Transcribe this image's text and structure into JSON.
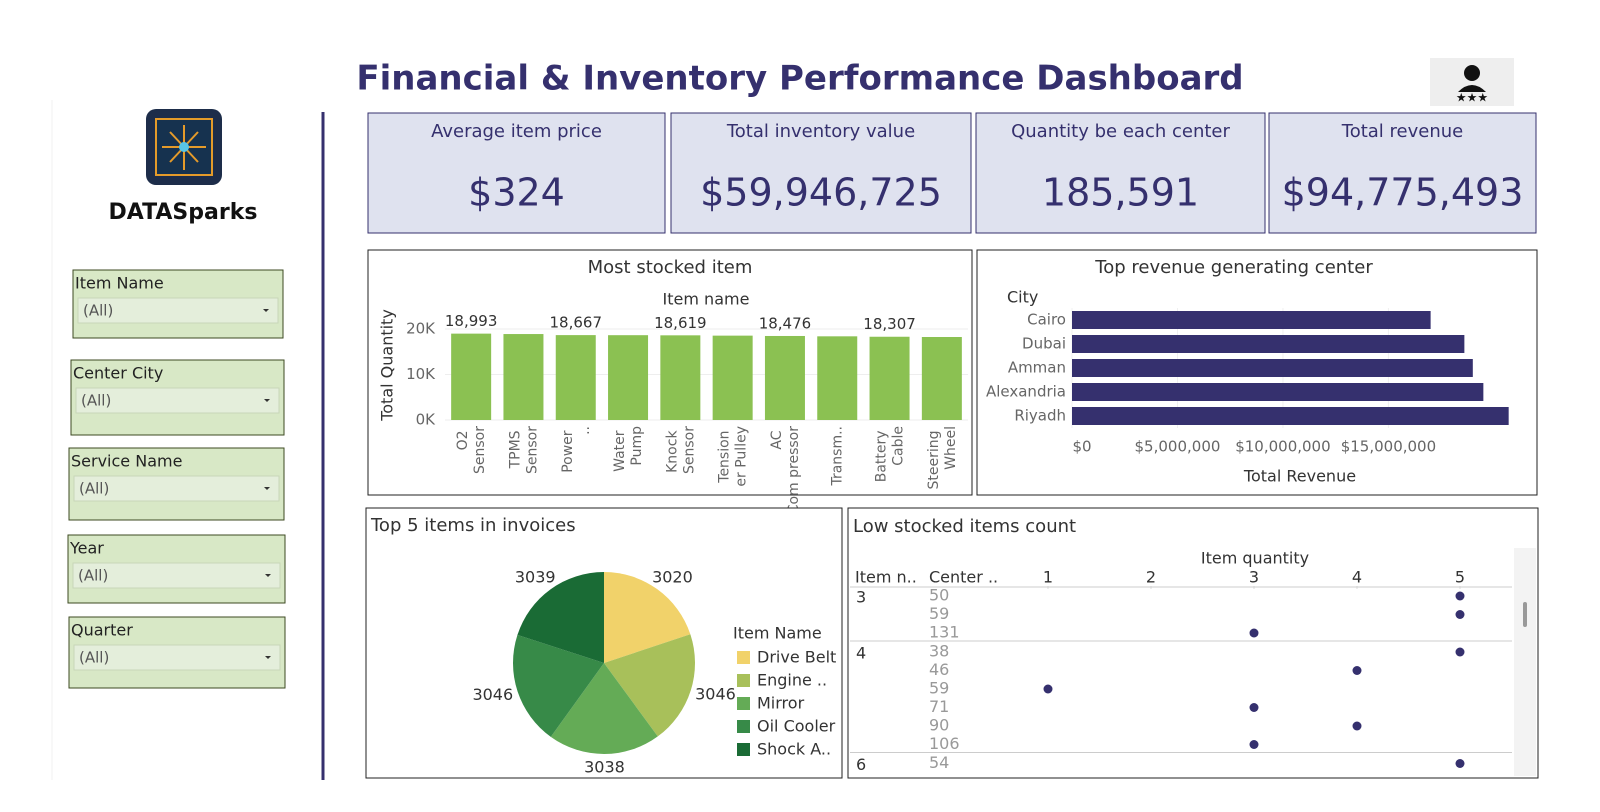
{
  "header": {
    "title": "Financial & Inventory Performance Dashboard",
    "logo": "DATASparks"
  },
  "filters": [
    {
      "label": "Item Name",
      "value": "(All)"
    },
    {
      "label": "Center City",
      "value": "(All)"
    },
    {
      "label": "Service Name",
      "value": "(All)"
    },
    {
      "label": "Year",
      "value": "(All)"
    },
    {
      "label": "Quarter",
      "value": "(All)"
    }
  ],
  "kpis": [
    {
      "label": "Average item price",
      "value": "$324"
    },
    {
      "label": "Total inventory value",
      "value": "$59,946,725"
    },
    {
      "label": "Quantity be each center",
      "value": "185,591"
    },
    {
      "label": "Total revenue",
      "value": "$94,775,493"
    }
  ],
  "chart_data": [
    {
      "type": "bar",
      "title": "Most stocked item",
      "x_label": "Item name",
      "y_label": "Total Quantity",
      "categories": [
        "O2 Sensor",
        "TPMS Sensor",
        "Power ..",
        "Water Pump",
        "Knock Sensor",
        "Tension er Pulley",
        "AC Com pressor",
        "Transm..",
        "Battery Cable",
        "Steering Wheel"
      ],
      "values": [
        18993,
        18900,
        18667,
        18650,
        18619,
        18550,
        18476,
        18400,
        18307,
        18250
      ],
      "value_labels": [
        "18,993",
        null,
        "18,667",
        null,
        "18,619",
        null,
        "18,476",
        null,
        "18,307",
        null
      ],
      "color": "#8bc152",
      "ylim": [
        0,
        21000
      ],
      "yticks": [
        {
          "value": 0,
          "label": "0K"
        },
        {
          "value": 10000,
          "label": "10K"
        },
        {
          "value": 20000,
          "label": "20K"
        }
      ],
      "grid": true
    },
    {
      "type": "hbar",
      "title": "Top revenue generating center",
      "y_label": "City",
      "x_label": "Total Revenue",
      "categories": [
        "Cairo",
        "Dubai",
        "Amman",
        "Alexandria",
        "Riyadh"
      ],
      "values": [
        17000000,
        18600000,
        19000000,
        19500000,
        20700000
      ],
      "color": "#35306e",
      "xlim": [
        0,
        21000000
      ],
      "xticks": [
        {
          "value": 0,
          "label": "$0"
        },
        {
          "value": 5000000,
          "label": "$5,000,000"
        },
        {
          "value": 10000000,
          "label": "$10,000,000"
        },
        {
          "value": 15000000,
          "label": "$15,000,000"
        }
      ],
      "grid": true
    },
    {
      "type": "pie",
      "title": "Top 5 items in invoices",
      "legend_title": "Item Name",
      "categories": [
        "Drive Belt",
        "Engine ..",
        "Mirror",
        "Oil Cooler",
        "Shock A.."
      ],
      "values": [
        3020,
        3046,
        3038,
        3046,
        3039
      ],
      "colors": [
        "#f1d26a",
        "#a8c05a",
        "#64ab56",
        "#378a48",
        "#1a6b35"
      ]
    },
    {
      "type": "dot-table",
      "title": "Low stocked items count",
      "x_label": "Item quantity",
      "row_headers": [
        "Item n..",
        "Center .."
      ],
      "xlim": [
        0.5,
        5.5
      ],
      "xticks": [
        1,
        2,
        3,
        4,
        5
      ],
      "color": "#35306e",
      "rows": [
        {
          "item": "3",
          "centers": [
            "50",
            "59",
            "131"
          ],
          "values": [
            5,
            5,
            3
          ]
        },
        {
          "item": "4",
          "centers": [
            "38",
            "46",
            "59",
            "71",
            "90",
            "106"
          ],
          "values": [
            5,
            4,
            1,
            3,
            4,
            3
          ]
        },
        {
          "item": "6",
          "centers": [
            "54"
          ],
          "values": [
            5
          ]
        }
      ]
    }
  ]
}
